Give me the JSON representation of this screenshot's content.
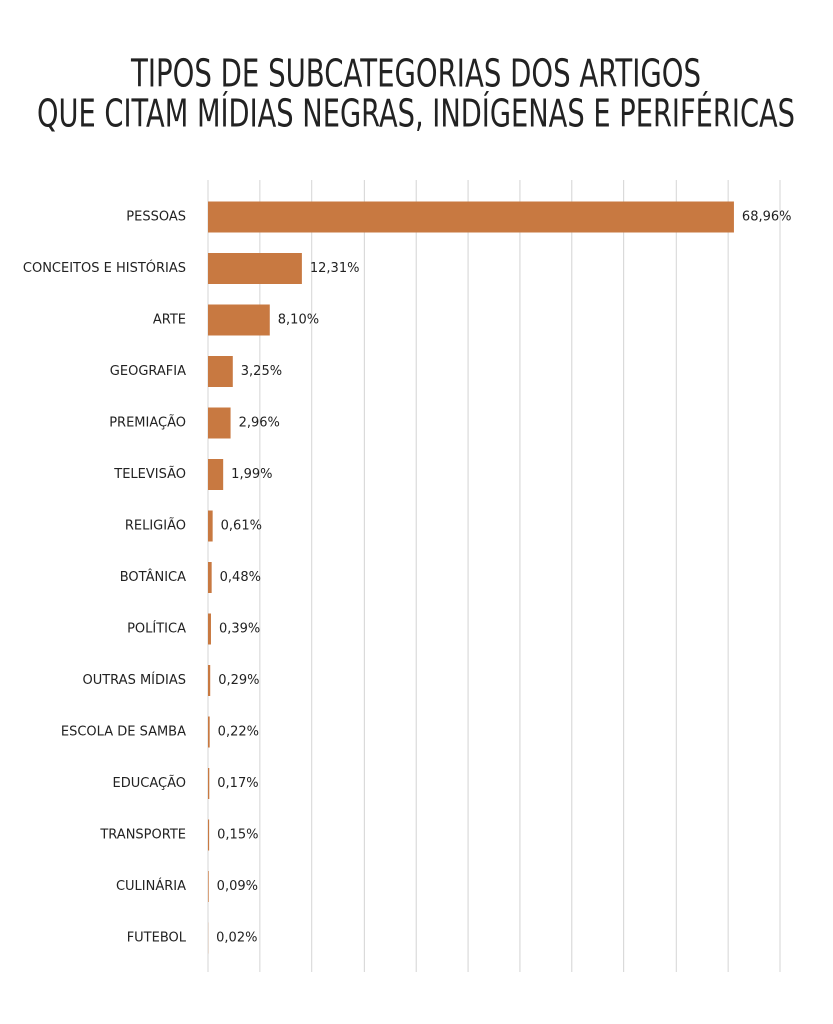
{
  "chart_data": {
    "type": "hbar",
    "title": [
      "TIPOS DE SUBCATEGORIAS DOS ARTIGOS",
      "QUE CITAM MÍDIAS NEGRAS, INDÍGENAS E PERIFÉRICAS"
    ],
    "categories": [
      "PESSOAS",
      "CONCEITOS E HISTÓRIAS",
      "ARTE",
      "GEOGRAFIA",
      "PREMIAÇÃO",
      "TELEVISÃO",
      "RELIGIÃO",
      "BOTÂNICA",
      "POLÍTICA",
      "OUTRAS MÍDIAS",
      "ESCOLA DE SAMBA",
      "EDUCAÇÃO",
      "TRANSPORTE",
      "CULINÁRIA",
      "FUTEBOL"
    ],
    "values": [
      68.96,
      12.31,
      8.1,
      3.25,
      2.96,
      1.99,
      0.61,
      0.48,
      0.39,
      0.29,
      0.22,
      0.17,
      0.15,
      0.09,
      0.02
    ],
    "value_labels": [
      "68,96%",
      "12,31%",
      "8,10%",
      "3,25%",
      "2,96%",
      "1,99%",
      "0,61%",
      "0,48%",
      "0,39%",
      "0,29%",
      "0,22%",
      "0,17%",
      "0,15%",
      "0,09%",
      "0,02%"
    ],
    "color": "#c87941",
    "xlim": [
      0,
      75
    ],
    "xticks": [
      0,
      6.8,
      13.6,
      20.5,
      27.3,
      34.1,
      40.9,
      47.7,
      54.5,
      61.4,
      68.2,
      75
    ],
    "grid": true
  }
}
